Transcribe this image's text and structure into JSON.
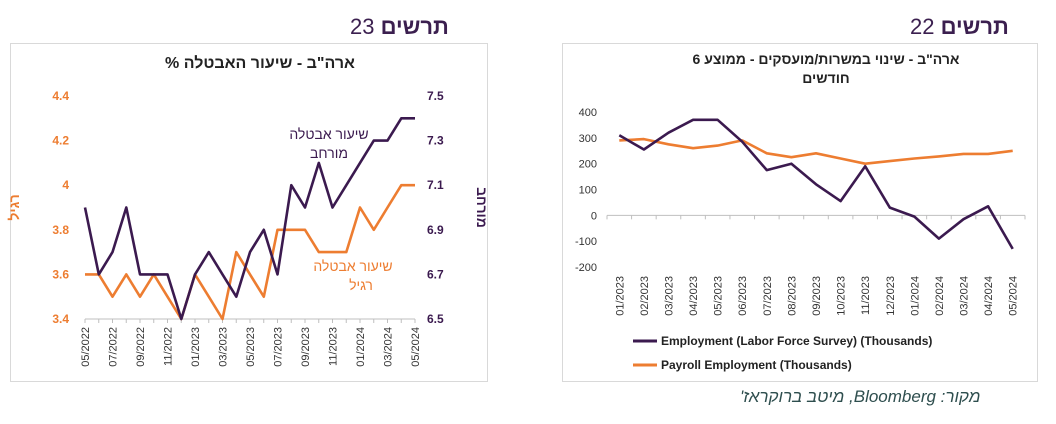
{
  "headers": {
    "left": {
      "word": "תרשים",
      "number": "23"
    },
    "right": {
      "word": "תרשים",
      "number": "22"
    }
  },
  "colors": {
    "purple": "#3b1a4f",
    "orange": "#ed7d31",
    "axis": "#404040",
    "grid": "#d9d9d9"
  },
  "chart_data": [
    {
      "type": "line",
      "title": "ארה\"ב - שיעור האבטלה %",
      "x": [
        "05/2022",
        "06/2022",
        "07/2022",
        "08/2022",
        "09/2022",
        "10/2022",
        "11/2022",
        "12/2022",
        "01/2023",
        "02/2023",
        "03/2023",
        "04/2023",
        "05/2023",
        "06/2023",
        "07/2023",
        "08/2023",
        "09/2023",
        "10/2023",
        "11/2023",
        "12/2023",
        "01/2024",
        "02/2024",
        "03/2024",
        "04/2024",
        "05/2024"
      ],
      "x_tick_labels": [
        "05/2022",
        "07/2022",
        "09/2022",
        "11/2022",
        "01/2023",
        "03/2023",
        "05/2023",
        "07/2023",
        "09/2023",
        "11/2023",
        "01/2024",
        "03/2024",
        "05/2024"
      ],
      "left_axis": {
        "label": "רגיל",
        "ylim": [
          3.4,
          4.4
        ],
        "ticks": [
          "3.4",
          "3.6",
          "3.8",
          "4",
          "4.2",
          "4.4"
        ]
      },
      "right_axis": {
        "label": "מורחב",
        "ylim": [
          6.5,
          7.5
        ],
        "ticks": [
          "6.5",
          "6.7",
          "6.9",
          "7.1",
          "7.3",
          "7.5"
        ]
      },
      "series": [
        {
          "name": "שיעור אבטלה רגיל",
          "axis": "left",
          "color": "#ed7d31",
          "values": [
            3.6,
            3.6,
            3.5,
            3.6,
            3.5,
            3.6,
            3.5,
            3.4,
            3.6,
            3.5,
            3.4,
            3.7,
            3.6,
            3.5,
            3.8,
            3.8,
            3.8,
            3.7,
            3.7,
            3.7,
            3.9,
            3.8,
            3.9,
            4.0,
            4.0
          ],
          "label_lines": [
            "שיעור אבטלה",
            "רגיל"
          ]
        },
        {
          "name": "שיעור אבטלה מורחב",
          "axis": "right",
          "color": "#3b1a4f",
          "values": [
            7.0,
            6.7,
            6.8,
            7.0,
            6.7,
            6.7,
            6.7,
            6.5,
            6.7,
            6.8,
            6.7,
            6.6,
            6.8,
            6.9,
            6.7,
            7.1,
            7.0,
            7.2,
            7.0,
            7.1,
            7.2,
            7.3,
            7.3,
            7.4,
            7.4
          ],
          "label_lines": [
            "שיעור אבטלה",
            "מורחב"
          ]
        }
      ]
    },
    {
      "type": "line",
      "title": "ארה\"ב - שינוי במשרות/מועסקים - ממוצע 6 חודשים",
      "title_lines": [
        "ארה\"ב - שינוי במשרות/מועסקים - ממוצע 6",
        "חודשים"
      ],
      "x": [
        "01/2023",
        "02/2023",
        "03/2023",
        "04/2023",
        "05/2023",
        "06/2023",
        "07/2023",
        "08/2023",
        "09/2023",
        "10/2023",
        "11/2023",
        "12/2023",
        "01/2024",
        "02/2024",
        "03/2024",
        "04/2024",
        "05/2024"
      ],
      "ylim": [
        -200,
        400
      ],
      "y_ticks": [
        "-200",
        "-100",
        "0",
        "100",
        "200",
        "300",
        "400"
      ],
      "legend_position": "bottom",
      "series": [
        {
          "name": "Employment (Labor Force Survey) (Thousands)",
          "color": "#3b1a4f",
          "values": [
            310,
            255,
            320,
            370,
            370,
            285,
            175,
            200,
            120,
            55,
            190,
            30,
            -5,
            -90,
            -15,
            35,
            -130
          ]
        },
        {
          "name": "Payroll Employment (Thousands)",
          "color": "#ed7d31",
          "values": [
            290,
            295,
            275,
            260,
            270,
            290,
            240,
            225,
            240,
            220,
            200,
            210,
            220,
            228,
            238,
            238,
            250
          ]
        }
      ]
    }
  ],
  "source": "מקור: Bloomberg, מיטב ברוקראז'"
}
